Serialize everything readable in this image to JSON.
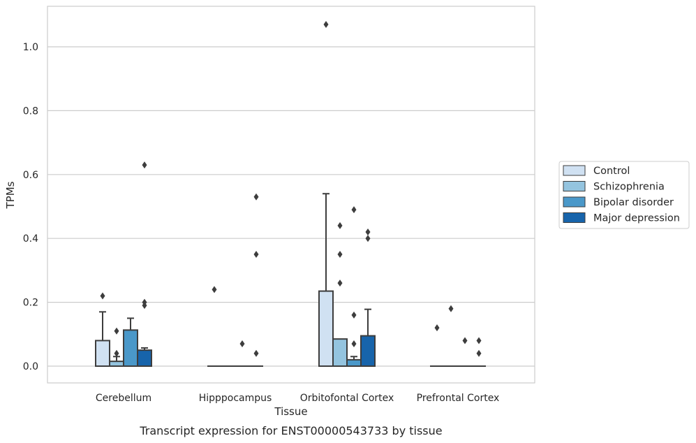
{
  "chart_data": {
    "type": "bar",
    "subtype": "box",
    "caption": "Transcript expression for ENST00000543733 by tissue",
    "xlabel": "Tissue",
    "ylabel": "TPMs",
    "ylim": [
      -0.05,
      1.13
    ],
    "yticks": [
      0.0,
      0.2,
      0.4,
      0.6,
      0.8,
      1.0
    ],
    "ytick_labels": [
      "0.0",
      "0.2",
      "0.4",
      "0.6",
      "0.8",
      "1.0"
    ],
    "grid": "horizontal",
    "legend_position": "right",
    "categories": [
      "Cerebellum",
      "Hipppocampus",
      "Orbitofontal Cortex",
      "Prefrontal Cortex"
    ],
    "series": [
      {
        "name": "Control",
        "color": "#d0e1f2",
        "boxes": [
          {
            "q1": 0.0,
            "median": 0.0,
            "q3": 0.08,
            "whisker_low": 0.0,
            "whisker_high": 0.17,
            "outliers": [
              0.22
            ]
          },
          {
            "q1": 0.0,
            "median": 0.0,
            "q3": 0.0,
            "whisker_low": 0.0,
            "whisker_high": 0.0,
            "outliers": [
              0.24
            ]
          },
          {
            "q1": 0.0,
            "median": 0.0,
            "q3": 0.235,
            "whisker_low": 0.0,
            "whisker_high": 0.54,
            "outliers": [
              1.07
            ]
          },
          {
            "q1": 0.0,
            "median": 0.0,
            "q3": 0.0,
            "whisker_low": 0.0,
            "whisker_high": 0.0,
            "outliers": [
              0.12
            ]
          }
        ]
      },
      {
        "name": "Schizophrenia",
        "color": "#94c4df",
        "boxes": [
          {
            "q1": 0.0,
            "median": 0.0,
            "q3": 0.015,
            "whisker_low": 0.0,
            "whisker_high": 0.03,
            "outliers": [
              0.04,
              0.11
            ]
          },
          {
            "q1": 0.0,
            "median": 0.0,
            "q3": 0.0,
            "whisker_low": 0.0,
            "whisker_high": 0.0,
            "outliers": []
          },
          {
            "q1": 0.0,
            "median": 0.0,
            "q3": 0.085,
            "whisker_low": 0.0,
            "whisker_high": 0.085,
            "outliers": [
              0.26,
              0.35,
              0.44
            ]
          },
          {
            "q1": 0.0,
            "median": 0.0,
            "q3": 0.0,
            "whisker_low": 0.0,
            "whisker_high": 0.0,
            "outliers": [
              0.18
            ]
          }
        ]
      },
      {
        "name": "Bipolar disorder",
        "color": "#4a98c9",
        "boxes": [
          {
            "q1": 0.0,
            "median": 0.0,
            "q3": 0.113,
            "whisker_low": 0.0,
            "whisker_high": 0.15,
            "outliers": []
          },
          {
            "q1": 0.0,
            "median": 0.0,
            "q3": 0.0,
            "whisker_low": 0.0,
            "whisker_high": 0.0,
            "outliers": [
              0.07
            ]
          },
          {
            "q1": 0.0,
            "median": 0.0,
            "q3": 0.02,
            "whisker_low": 0.0,
            "whisker_high": 0.03,
            "outliers": [
              0.07,
              0.16,
              0.49
            ]
          },
          {
            "q1": 0.0,
            "median": 0.0,
            "q3": 0.0,
            "whisker_low": 0.0,
            "whisker_high": 0.0,
            "outliers": [
              0.08
            ]
          }
        ]
      },
      {
        "name": "Major depression",
        "color": "#1764ab",
        "boxes": [
          {
            "q1": 0.0,
            "median": 0.0,
            "q3": 0.05,
            "whisker_low": 0.0,
            "whisker_high": 0.057,
            "outliers": [
              0.19,
              0.2,
              0.63
            ]
          },
          {
            "q1": 0.0,
            "median": 0.0,
            "q3": 0.0,
            "whisker_low": 0.0,
            "whisker_high": 0.0,
            "outliers": [
              0.04,
              0.35,
              0.53
            ]
          },
          {
            "q1": 0.0,
            "median": 0.0,
            "q3": 0.095,
            "whisker_low": 0.0,
            "whisker_high": 0.178,
            "outliers": [
              0.4,
              0.42
            ]
          },
          {
            "q1": 0.0,
            "median": 0.0,
            "q3": 0.0,
            "whisker_low": 0.0,
            "whisker_high": 0.0,
            "outliers": [
              0.04,
              0.08
            ]
          }
        ]
      }
    ]
  },
  "colors": {
    "grid": "#cccccc",
    "frame": "#cccccc",
    "box_edge": "#3d3d3d",
    "outlier": "#3d3d3d"
  }
}
